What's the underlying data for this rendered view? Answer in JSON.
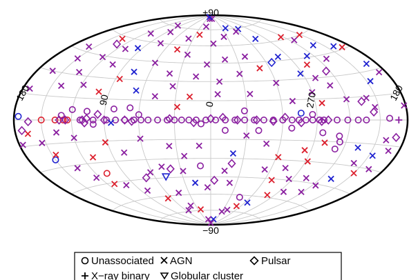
{
  "chart_data": {
    "type": "scatter",
    "projection": "hammer-aitoff",
    "coordinate_system": "galactic",
    "grid": true,
    "legend_placement": "bottom",
    "axis_labels": {
      "top": "+90",
      "bottom": "−90",
      "left": "180",
      "center": "0",
      "lon_90": "90",
      "lon_270": "270",
      "right": "180"
    },
    "colors": {
      "blue": "#1f22d0",
      "purple": "#8a1fa0",
      "magenta": "#b01c72",
      "red": "#dc1f2d"
    },
    "legend": [
      {
        "label": "Unassociated",
        "marker": "circle"
      },
      {
        "label": "AGN",
        "marker": "x"
      },
      {
        "label": "Pulsar",
        "marker": "diamond"
      },
      {
        "label": "X−ray binary",
        "marker": "plus"
      },
      {
        "label": "Globular cluster",
        "marker": "triangle"
      }
    ],
    "series": [
      {
        "name": "Unassociated",
        "marker": "circle",
        "points": [
          [
            -160,
            1,
            "purple"
          ],
          [
            -136,
            0,
            "purple"
          ],
          [
            -128,
            0,
            "purple"
          ],
          [
            -118,
            0,
            "purple"
          ],
          [
            -108,
            0,
            "purple"
          ],
          [
            -96,
            0,
            "purple"
          ],
          [
            -92,
            0,
            "purple"
          ],
          [
            -86,
            0,
            "purple"
          ],
          [
            -80,
            0,
            "purple"
          ],
          [
            -74,
            0,
            "purple"
          ],
          [
            -68,
            0,
            "purple"
          ],
          [
            -60,
            0,
            "purple"
          ],
          [
            -52,
            0,
            "purple"
          ],
          [
            -44,
            0,
            "purple"
          ],
          [
            -36,
            0,
            "purple"
          ],
          [
            -28,
            0,
            "purple"
          ],
          [
            -20,
            0,
            "purple"
          ],
          [
            -12,
            0,
            "purple"
          ],
          [
            -4,
            0,
            "purple"
          ],
          [
            4,
            0,
            "purple"
          ],
          [
            12,
            0,
            "purple"
          ],
          [
            18,
            0,
            "purple"
          ],
          [
            24,
            0,
            "purple"
          ],
          [
            30,
            0,
            "purple"
          ],
          [
            36,
            0,
            "purple"
          ],
          [
            44,
            0,
            "purple"
          ],
          [
            52,
            0,
            "purple"
          ],
          [
            58,
            0,
            "purple"
          ],
          [
            64,
            0,
            "purple"
          ],
          [
            72,
            0,
            "purple"
          ],
          [
            80,
            0,
            "purple"
          ],
          [
            88,
            0,
            "purple"
          ],
          [
            100,
            0,
            "purple"
          ],
          [
            112,
            0,
            "purple"
          ],
          [
            124,
            0,
            "red"
          ],
          [
            128,
            0,
            "red"
          ],
          [
            136,
            0,
            "red"
          ],
          [
            150,
            0,
            "red"
          ],
          [
            -86,
            4,
            "purple"
          ],
          [
            -76,
            5,
            "blue"
          ],
          [
            -28,
            7,
            "purple"
          ],
          [
            -96,
            -9,
            "purple"
          ],
          [
            -112,
            -11,
            "purple"
          ],
          [
            -68,
            -6,
            "purple"
          ],
          [
            -12,
            -8,
            "purple"
          ],
          [
            -40,
            -8,
            "purple"
          ],
          [
            8,
            -3,
            "purple"
          ],
          [
            60,
            4,
            "purple"
          ],
          [
            82,
            8,
            "purple"
          ],
          [
            106,
            6,
            "purple"
          ],
          [
            120,
            7,
            "purple"
          ],
          [
            68,
            9,
            "purple"
          ],
          [
            100,
            -3,
            "purple"
          ],
          [
            150,
            -25,
            "blue"
          ],
          [
            -112,
            -20,
            "purple"
          ],
          [
            10,
            -36,
            "purple"
          ],
          [
            -44,
            -62,
            "purple"
          ],
          [
            108,
            -38,
            "red"
          ],
          [
            -114,
            -15,
            "purple"
          ],
          [
            130,
            3,
            "purple"
          ],
          [
            175,
            2,
            "blue"
          ]
        ]
      },
      {
        "name": "AGN",
        "marker": "x",
        "points": [
          [
            -172,
            28,
            "purple"
          ],
          [
            -168,
            34,
            "blue"
          ],
          [
            -154,
            24,
            "blue"
          ],
          [
            -168,
            46,
            "red"
          ],
          [
            -160,
            48,
            "blue"
          ],
          [
            -148,
            60,
            "red"
          ],
          [
            -138,
            52,
            "blue"
          ],
          [
            -126,
            58,
            "purple"
          ],
          [
            -116,
            62,
            "red"
          ],
          [
            -130,
            42,
            "purple"
          ],
          [
            -112,
            46,
            "blue"
          ],
          [
            -102,
            40,
            "red"
          ],
          [
            -88,
            34,
            "blue"
          ],
          [
            -100,
            30,
            "purple"
          ],
          [
            -110,
            24,
            "purple"
          ],
          [
            -120,
            14,
            "purple"
          ],
          [
            -140,
            14,
            "purple"
          ],
          [
            -146,
            8,
            "purple"
          ],
          [
            -96,
            12,
            "red"
          ],
          [
            -70,
            14,
            "purple"
          ],
          [
            -60,
            28,
            "purple"
          ],
          [
            -78,
            48,
            "blue"
          ],
          [
            -74,
            64,
            "blue"
          ],
          [
            -68,
            74,
            "blue"
          ],
          [
            -56,
            72,
            "purple"
          ],
          [
            -40,
            76,
            "blue"
          ],
          [
            -24,
            68,
            "purple"
          ],
          [
            -10,
            86,
            "purple"
          ],
          [
            8,
            86,
            "purple"
          ],
          [
            20,
            88,
            "blue"
          ],
          [
            14,
            78,
            "purple"
          ],
          [
            22,
            70,
            "red"
          ],
          [
            38,
            66,
            "purple"
          ],
          [
            44,
            56,
            "red"
          ],
          [
            28,
            52,
            "purple"
          ],
          [
            -4,
            62,
            "purple"
          ],
          [
            -40,
            50,
            "purple"
          ],
          [
            -28,
            36,
            "purple"
          ],
          [
            -8,
            30,
            "purple"
          ],
          [
            14,
            34,
            "purple"
          ],
          [
            34,
            26,
            "purple"
          ],
          [
            18,
            18,
            "red"
          ],
          [
            28,
            10,
            "red"
          ],
          [
            40,
            36,
            "purple"
          ],
          [
            60,
            44,
            "purple"
          ],
          [
            74,
            60,
            "purple"
          ],
          [
            84,
            70,
            "purple"
          ],
          [
            96,
            76,
            "purple"
          ],
          [
            112,
            66,
            "purple"
          ],
          [
            110,
            52,
            "purple"
          ],
          [
            124,
            44,
            "purple"
          ],
          [
            136,
            58,
            "red"
          ],
          [
            150,
            40,
            "purple"
          ],
          [
            162,
            30,
            "purple"
          ],
          [
            140,
            22,
            "purple"
          ],
          [
            118,
            24,
            "purple"
          ],
          [
            100,
            20,
            "red"
          ],
          [
            86,
            30,
            "red"
          ],
          [
            66,
            22,
            "blue"
          ],
          [
            76,
            36,
            "blue"
          ],
          [
            -160,
            -12,
            "purple"
          ],
          [
            -168,
            -18,
            "purple"
          ],
          [
            -154,
            -22,
            "blue"
          ],
          [
            -162,
            -30,
            "purple"
          ],
          [
            -150,
            -34,
            "red"
          ],
          [
            -140,
            -28,
            "purple"
          ],
          [
            -132,
            -40,
            "blue"
          ],
          [
            -124,
            -46,
            "purple"
          ],
          [
            -118,
            -52,
            "purple"
          ],
          [
            -104,
            -42,
            "purple"
          ],
          [
            -92,
            -30,
            "red"
          ],
          [
            -84,
            -22,
            "red"
          ],
          [
            -74,
            -36,
            "purple"
          ],
          [
            -68,
            -46,
            "red"
          ],
          [
            -80,
            -58,
            "red"
          ],
          [
            -64,
            -66,
            "blue"
          ],
          [
            -52,
            -70,
            "red"
          ],
          [
            -40,
            -74,
            "purple"
          ],
          [
            -30,
            -76,
            "purple"
          ],
          [
            -16,
            -84,
            "blue"
          ],
          [
            -2,
            -88,
            "purple"
          ],
          [
            14,
            -84,
            "purple"
          ],
          [
            24,
            -74,
            "red"
          ],
          [
            40,
            -70,
            "purple"
          ],
          [
            54,
            -74,
            "purple"
          ],
          [
            66,
            -62,
            "red"
          ],
          [
            82,
            -54,
            "purple"
          ],
          [
            100,
            -48,
            "purple"
          ],
          [
            112,
            -46,
            "red"
          ],
          [
            124,
            -40,
            "purple"
          ],
          [
            134,
            -32,
            "purple"
          ],
          [
            146,
            -22,
            "red"
          ],
          [
            154,
            -14,
            "purple"
          ],
          [
            166,
            -8,
            "red"
          ],
          [
            176,
            -14,
            "purple"
          ],
          [
            -48,
            -18,
            "purple"
          ],
          [
            -30,
            -12,
            "purple"
          ],
          [
            -20,
            -26,
            "blue"
          ],
          [
            10,
            -20,
            "purple"
          ],
          [
            24,
            -28,
            "purple"
          ],
          [
            36,
            -20,
            "purple"
          ],
          [
            48,
            -36,
            "purple"
          ],
          [
            62,
            -40,
            "purple"
          ],
          [
            78,
            -24,
            "purple"
          ],
          [
            92,
            -16,
            "red"
          ],
          [
            110,
            -26,
            "red"
          ],
          [
            120,
            -12,
            "purple"
          ],
          [
            136,
            -8,
            "purple"
          ],
          [
            60,
            -14,
            "purple"
          ],
          [
            84,
            -2,
            "blue"
          ],
          [
            -100,
            -16,
            "red"
          ],
          [
            -62,
            -28,
            "red"
          ],
          [
            -14,
            -40,
            "purple"
          ],
          [
            4,
            -54,
            "purple"
          ],
          [
            18,
            -50,
            "blue"
          ],
          [
            28,
            -40,
            "purple"
          ],
          [
            44,
            -58,
            "purple"
          ],
          [
            -22,
            -50,
            "purple"
          ],
          [
            -54,
            -38,
            "purple"
          ],
          [
            -86,
            -44,
            "purple"
          ],
          [
            -96,
            -54,
            "purple"
          ],
          [
            -134,
            -18,
            "blue"
          ],
          [
            -178,
            8,
            "purple"
          ],
          [
            172,
            18,
            "purple"
          ],
          [
            158,
            48,
            "purple"
          ],
          [
            96,
            54,
            "blue"
          ],
          [
            132,
            32,
            "purple"
          ],
          [
            104,
            40,
            "purple"
          ],
          [
            -90,
            20,
            "purple"
          ],
          [
            -50,
            40,
            "red"
          ],
          [
            -16,
            48,
            "purple"
          ],
          [
            4,
            44,
            "purple"
          ],
          [
            -34,
            20,
            "purple"
          ],
          [
            48,
            18,
            "purple"
          ],
          [
            -6,
            20,
            "purple"
          ]
        ]
      },
      {
        "name": "Pulsar",
        "marker": "diamond",
        "points": [
          [
            -170,
            -10,
            "purple"
          ],
          [
            -144,
            5,
            "purple"
          ],
          [
            -134,
            12,
            "purple"
          ],
          [
            -116,
            34,
            "purple"
          ],
          [
            -100,
            0,
            "purple"
          ],
          [
            -76,
            -2,
            "purple"
          ],
          [
            -62,
            2,
            "purple"
          ],
          [
            -52,
            -1,
            "purple"
          ],
          [
            -38,
            0,
            "purple"
          ],
          [
            -22,
            0,
            "purple"
          ],
          [
            -10,
            2,
            "purple"
          ],
          [
            0,
            1,
            "purple"
          ],
          [
            14,
            -2,
            "purple"
          ],
          [
            34,
            1,
            "purple"
          ],
          [
            66,
            -1,
            "purple"
          ],
          [
            72,
            0,
            "purple"
          ],
          [
            90,
            0,
            "purple"
          ],
          [
            106,
            1,
            "purple"
          ],
          [
            110,
            0,
            "purple"
          ],
          [
            108,
            -2,
            "purple"
          ],
          [
            126,
            0,
            "purple"
          ],
          [
            132,
            0,
            "purple"
          ],
          [
            164,
            -1,
            "purple"
          ],
          [
            172,
            -6,
            "purple"
          ],
          [
            96,
            4,
            "purple"
          ],
          [
            -94,
            -1,
            "purple"
          ],
          [
            -66,
            44,
            "blue"
          ],
          [
            40,
            -38,
            "purple"
          ],
          [
            130,
            54,
            "purple"
          ],
          [
            -20,
            -34,
            "purple"
          ],
          [
            -4,
            -48,
            "purple"
          ],
          [
            70,
            -44,
            "purple"
          ]
        ]
      },
      {
        "name": "X−ray binary",
        "marker": "plus",
        "points": [
          [
            -170,
            0,
            "purple"
          ]
        ]
      },
      {
        "name": "Globular cluster",
        "marker": "triangle",
        "points": [
          [
            48,
            -44,
            "blue"
          ]
        ]
      }
    ]
  }
}
